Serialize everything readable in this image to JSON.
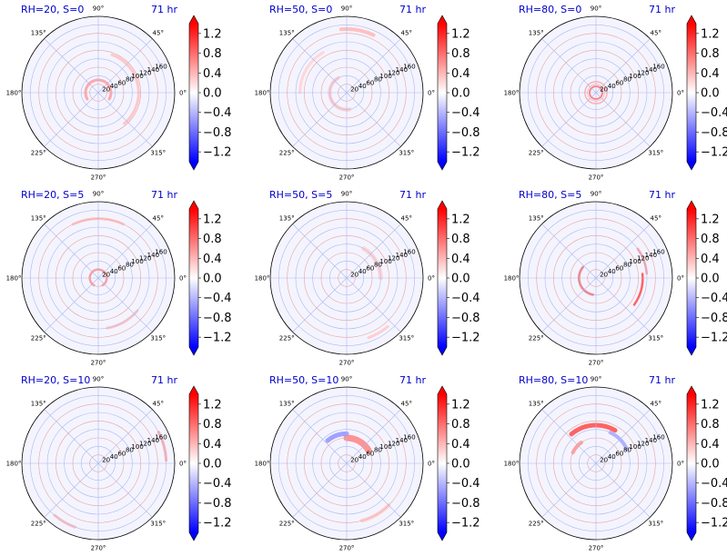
{
  "chart_data": {
    "type": "polar-heatmap",
    "time_label": "71 hr",
    "angle_ticks": [
      "0°",
      "45°",
      "90°",
      "135°",
      "180°",
      "225°",
      "270°",
      "315°"
    ],
    "radial_ticks": [
      "20",
      "40",
      "60",
      "80",
      "100",
      "120",
      "140",
      "160"
    ],
    "radial_max": 180,
    "colorbar": {
      "cmap": "bwr",
      "vmin": -1.4,
      "vmax": 1.4,
      "ticks": [
        "1.2",
        "0.8",
        "0.4",
        "0.0",
        "−0.4",
        "−0.8",
        "−1.2"
      ],
      "tick_values": [
        1.2,
        0.8,
        0.4,
        0.0,
        -0.4,
        -0.8,
        -1.2
      ],
      "extend": "both"
    },
    "panels": [
      {
        "title": "RH=20, S=0",
        "features": [
          {
            "theta": 90,
            "r": 30,
            "arc": 240,
            "w": 6,
            "v": 0.55
          },
          {
            "theta": 10,
            "r": 95,
            "arc": 120,
            "w": 6,
            "v": 0.35
          }
        ]
      },
      {
        "title": "RH=50, S=0",
        "features": [
          {
            "theta": 200,
            "r": 40,
            "arc": 160,
            "w": 8,
            "v": 0.3
          },
          {
            "theta": 80,
            "r": 150,
            "arc": 30,
            "w": 8,
            "v": 0.4
          },
          {
            "theta": 150,
            "r": 110,
            "arc": 60,
            "w": 6,
            "v": 0.25
          }
        ]
      },
      {
        "title": "RH=80, S=0",
        "features": [
          {
            "theta": 90,
            "r": 15,
            "arc": 360,
            "w": 4,
            "v": 0.8
          },
          {
            "theta": 90,
            "r": 26,
            "arc": 360,
            "w": 3,
            "v": 0.5
          }
        ]
      },
      {
        "title": "RH=20, S=5",
        "features": [
          {
            "theta": 90,
            "r": 20,
            "arc": 300,
            "w": 5,
            "v": 0.6
          },
          {
            "theta": 90,
            "r": 140,
            "arc": 50,
            "w": 6,
            "v": 0.35
          },
          {
            "theta": 300,
            "r": 120,
            "arc": 40,
            "w": 6,
            "v": 0.35
          }
        ]
      },
      {
        "title": "RH=50, S=5",
        "features": [
          {
            "theta": 30,
            "r": 80,
            "arc": 60,
            "w": 10,
            "v": 0.25
          },
          {
            "theta": 300,
            "r": 150,
            "arc": 20,
            "w": 6,
            "v": 0.3
          }
        ]
      },
      {
        "title": "RH=80, S=5",
        "features": [
          {
            "theta": 200,
            "r": 40,
            "arc": 120,
            "w": 5,
            "v": 0.9
          },
          {
            "theta": 345,
            "r": 110,
            "arc": 40,
            "w": 5,
            "v": 1.0
          },
          {
            "theta": 20,
            "r": 120,
            "arc": 30,
            "w": 5,
            "v": 0.6
          }
        ]
      },
      {
        "title": "RH=20, S=10",
        "features": [
          {
            "theta": 15,
            "r": 160,
            "arc": 25,
            "w": 6,
            "v": 0.5
          },
          {
            "theta": 240,
            "r": 160,
            "arc": 20,
            "w": 6,
            "v": 0.4
          }
        ]
      },
      {
        "title": "RH=50, S=10",
        "features": [
          {
            "theta": 60,
            "r": 60,
            "arc": 60,
            "w": 14,
            "v": 0.7
          },
          {
            "theta": 110,
            "r": 70,
            "arc": 40,
            "w": 10,
            "v": -0.6
          },
          {
            "theta": 300,
            "r": 140,
            "arc": 30,
            "w": 8,
            "v": 0.3
          }
        ]
      },
      {
        "title": "RH=80, S=10",
        "features": [
          {
            "theta": 95,
            "r": 90,
            "arc": 70,
            "w": 10,
            "v": 1.0
          },
          {
            "theta": 45,
            "r": 80,
            "arc": 40,
            "w": 8,
            "v": -0.5
          },
          {
            "theta": 140,
            "r": 60,
            "arc": 30,
            "w": 8,
            "v": 0.6
          }
        ]
      }
    ]
  }
}
